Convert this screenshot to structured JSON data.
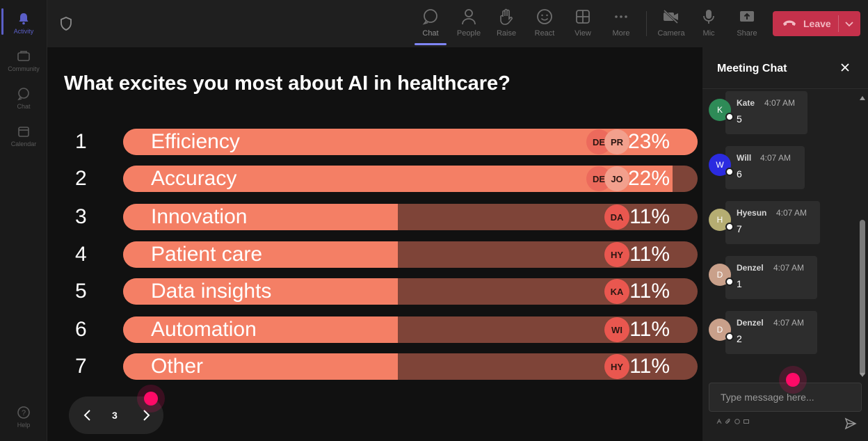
{
  "rail": {
    "items": [
      {
        "label": "Activity",
        "icon": "bell-icon"
      },
      {
        "label": "Community",
        "icon": "community-icon"
      },
      {
        "label": "Chat",
        "icon": "chat-icon"
      },
      {
        "label": "Calendar",
        "icon": "calendar-icon"
      },
      {
        "label": "Help",
        "icon": "help-icon"
      }
    ]
  },
  "toolbar": {
    "buttons": [
      {
        "label": "Chat",
        "icon": "chat-icon"
      },
      {
        "label": "People",
        "icon": "people-icon"
      },
      {
        "label": "Raise",
        "icon": "hand-icon"
      },
      {
        "label": "React",
        "icon": "smiley-icon"
      },
      {
        "label": "View",
        "icon": "grid-icon"
      },
      {
        "label": "More",
        "icon": "more-icon"
      },
      {
        "label": "Camera",
        "icon": "camera-off-icon"
      },
      {
        "label": "Mic",
        "icon": "mic-icon"
      },
      {
        "label": "Share",
        "icon": "share-icon"
      }
    ],
    "leave_label": "Leave"
  },
  "poll": {
    "question": "What excites you most about AI in healthcare?",
    "options": [
      {
        "rank": "1",
        "label": "Efficiency",
        "percent_text": "23%",
        "value": 23,
        "avatars": [
          "DE",
          "PR"
        ]
      },
      {
        "rank": "2",
        "label": "Accuracy",
        "percent_text": "22%",
        "value": 22,
        "avatars": [
          "DE",
          "JO"
        ]
      },
      {
        "rank": "3",
        "label": "Innovation",
        "percent_text": "11%",
        "value": 11,
        "avatars": [
          "DA"
        ]
      },
      {
        "rank": "4",
        "label": "Patient care",
        "percent_text": "11%",
        "value": 11,
        "avatars": [
          "HY"
        ]
      },
      {
        "rank": "5",
        "label": "Data insights",
        "percent_text": "11%",
        "value": 11,
        "avatars": [
          "KA"
        ]
      },
      {
        "rank": "6",
        "label": "Automation",
        "percent_text": "11%",
        "value": 11,
        "avatars": [
          "WI"
        ]
      },
      {
        "rank": "7",
        "label": "Other",
        "percent_text": "11%",
        "value": 11,
        "avatars": [
          "HY"
        ]
      }
    ],
    "page": "3"
  },
  "chat": {
    "title": "Meeting Chat",
    "messages": [
      {
        "initial": "K",
        "name": "Kate",
        "time": "4:07 AM",
        "text": "5",
        "avatar_color": "#2e8b57"
      },
      {
        "initial": "W",
        "name": "Will",
        "time": "4:07 AM",
        "text": "6",
        "avatar_color": "#2b2be0"
      },
      {
        "initial": "H",
        "name": "Hyesun",
        "time": "4:07 AM",
        "text": "7",
        "avatar_color": "#b5ad72"
      },
      {
        "initial": "D",
        "name": "Denzel",
        "time": "4:07 AM",
        "text": "1",
        "avatar_color": "#c9a08a"
      },
      {
        "initial": "D",
        "name": "Denzel",
        "time": "4:07 AM",
        "text": "2",
        "avatar_color": "#c9a08a"
      }
    ],
    "placeholder": "Type message here..."
  },
  "colors": {
    "bar_fill": "#f47f65",
    "bar_track": "#7e4438",
    "leave": "#c4314b",
    "accent": "#5b5fc7",
    "cursor_dot": "#ff0a67"
  }
}
